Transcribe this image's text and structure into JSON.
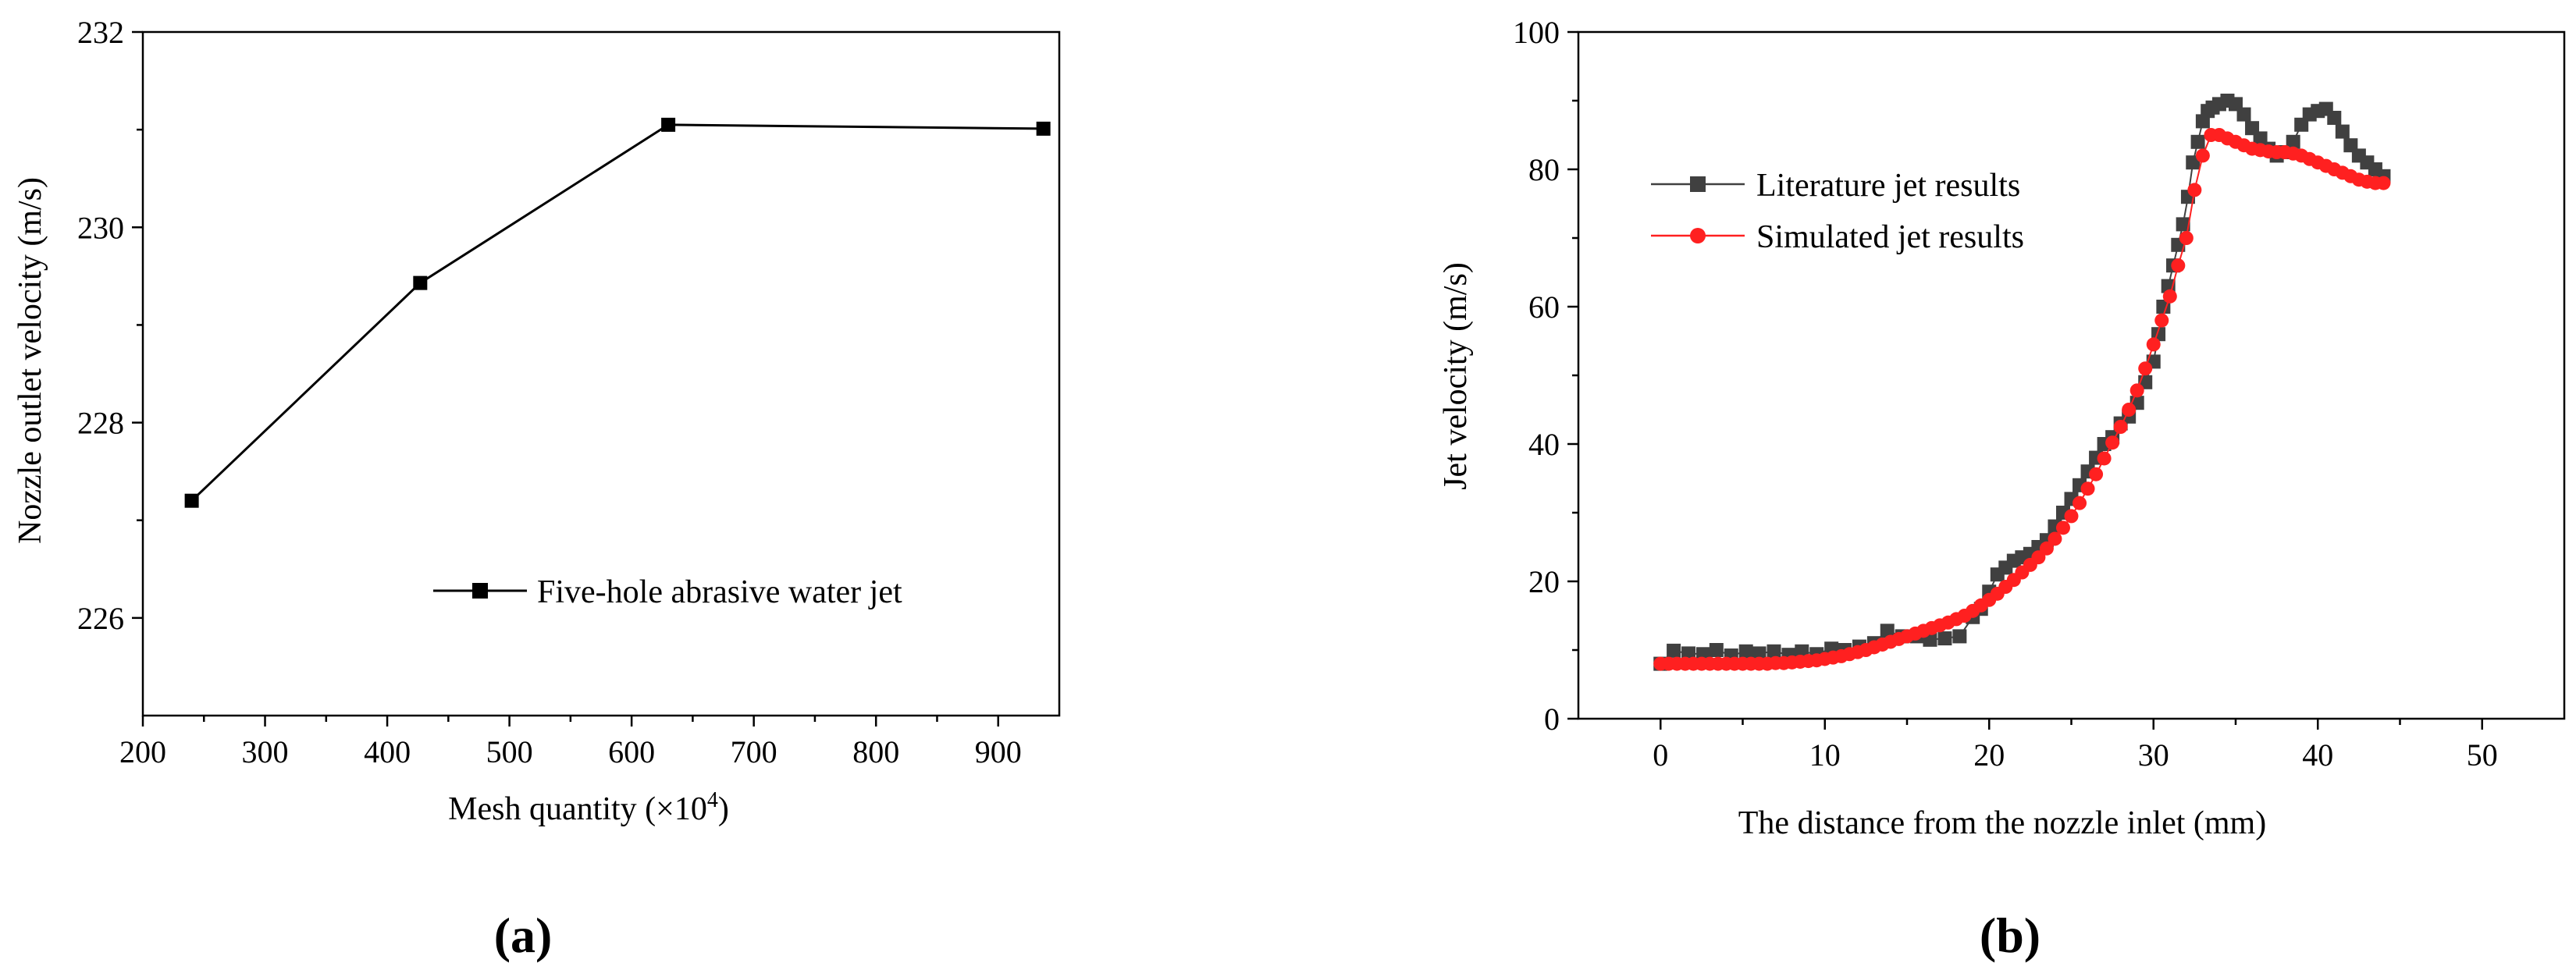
{
  "chart_data": [
    {
      "type": "line",
      "panel_label": "(a)",
      "xlabel": "Mesh quantity (×10⁴)",
      "ylabel": "Nozzle outlet velocity (m/s)",
      "xlim": [
        200,
        950
      ],
      "ylim": [
        225,
        232
      ],
      "xticks": [
        200,
        300,
        400,
        500,
        600,
        700,
        800,
        900
      ],
      "yticks": [
        226,
        228,
        230,
        232
      ],
      "legend_position": "lower-right",
      "series": [
        {
          "name": "Five-hole abrasive water jet",
          "color": "#000000",
          "marker": "square",
          "x": [
            240,
            427,
            630,
            937
          ],
          "y": [
            227.2,
            229.43,
            231.05,
            231.01
          ]
        }
      ]
    },
    {
      "type": "line",
      "panel_label": "(b)",
      "xlabel": "The distance from the nozzle inlet (mm)",
      "ylabel": "Jet velocity (m/s)",
      "xlim": [
        -5,
        55
      ],
      "ylim": [
        0,
        100
      ],
      "xticks": [
        0,
        10,
        20,
        30,
        40,
        50
      ],
      "yticks": [
        0,
        20,
        40,
        60,
        80,
        100
      ],
      "legend_position": "top-left",
      "series": [
        {
          "name": "Literature jet results",
          "color": "#404040",
          "marker": "square",
          "x": [
            0,
            0.8,
            1.7,
            2.6,
            3.4,
            4.3,
            5.2,
            6.0,
            6.9,
            7.8,
            8.6,
            9.5,
            10.4,
            11.2,
            12.1,
            13.0,
            13.8,
            14.7,
            15.6,
            16.4,
            17.3,
            18.2,
            19.0,
            19.5,
            20.0,
            20.5,
            21.0,
            21.5,
            22.0,
            22.5,
            23.0,
            23.5,
            24.0,
            24.5,
            25.0,
            25.5,
            26.0,
            26.5,
            27.0,
            27.5,
            28.0,
            28.5,
            29.0,
            29.5,
            30.0,
            30.3,
            30.6,
            30.9,
            31.2,
            31.5,
            31.8,
            32.1,
            32.4,
            32.7,
            33.0,
            33.3,
            33.6,
            34.0,
            34.5,
            35.0,
            35.5,
            36.0,
            36.5,
            37.0,
            37.5,
            38.0,
            38.5,
            39.0,
            39.5,
            40.0,
            40.5,
            41.0,
            41.5,
            42.0,
            42.5,
            43.0,
            43.5,
            44.0
          ],
          "y": [
            8,
            9.9,
            9.5,
            9.4,
            10.0,
            9.2,
            9.8,
            9.5,
            9.8,
            9.3,
            9.8,
            9.4,
            10.2,
            10.0,
            10.5,
            11.0,
            12.8,
            12.0,
            12.0,
            11.5,
            11.7,
            12.0,
            14.8,
            16.0,
            18.5,
            21.0,
            22.0,
            23.0,
            23.5,
            24.0,
            25.0,
            26.0,
            28.0,
            30.0,
            32.0,
            34.0,
            36.0,
            38.0,
            40.0,
            41.0,
            43.0,
            44.0,
            46.0,
            49.0,
            52.0,
            56.0,
            60.0,
            63.0,
            66.0,
            69.0,
            72.0,
            76.0,
            81.0,
            84.0,
            87.0,
            88.5,
            89.0,
            89.5,
            90.0,
            89.5,
            88.0,
            86.0,
            84.5,
            83.0,
            82.0,
            82.5,
            84.0,
            86.5,
            88.0,
            88.5,
            88.8,
            87.5,
            85.5,
            83.5,
            82.0,
            81.0,
            80.0,
            79.0
          ]
        },
        {
          "name": "Simulated jet results",
          "color": "#ff2020",
          "marker": "circle",
          "x": [
            0,
            0.5,
            1.0,
            1.5,
            2.0,
            2.5,
            3.0,
            3.5,
            4.0,
            4.5,
            5.0,
            5.5,
            6.0,
            6.5,
            7.0,
            7.5,
            8.0,
            8.5,
            9.0,
            9.5,
            10.0,
            10.5,
            11.0,
            11.5,
            12.0,
            12.5,
            13.0,
            13.5,
            14.0,
            14.5,
            15.0,
            15.5,
            16.0,
            16.5,
            17.0,
            17.5,
            18.0,
            18.5,
            19.0,
            19.5,
            20.0,
            20.5,
            21.0,
            21.5,
            22.0,
            22.5,
            23.0,
            23.5,
            24.0,
            24.5,
            25.0,
            25.5,
            26.0,
            26.5,
            27.0,
            27.5,
            28.0,
            28.5,
            29.0,
            29.5,
            30.0,
            30.5,
            31.0,
            31.5,
            32.0,
            32.5,
            33.0,
            33.5,
            34.0,
            34.5,
            35.0,
            35.5,
            36.0,
            36.5,
            37.0,
            37.5,
            38.0,
            38.5,
            39.0,
            39.5,
            40.0,
            40.5,
            41.0,
            41.5,
            42.0,
            42.5,
            43.0,
            43.5,
            44.0
          ],
          "y": [
            8.0,
            8.0,
            8.0,
            8.0,
            8.0,
            8.0,
            8.0,
            8.0,
            8.0,
            8.0,
            8.0,
            8.0,
            8.0,
            8.0,
            8.1,
            8.1,
            8.2,
            8.3,
            8.4,
            8.5,
            8.7,
            8.9,
            9.1,
            9.4,
            9.7,
            10.0,
            10.4,
            10.8,
            11.2,
            11.6,
            12.0,
            12.4,
            12.8,
            13.2,
            13.6,
            14.0,
            14.5,
            15.0,
            15.7,
            16.5,
            17.3,
            18.2,
            19.2,
            20.2,
            21.3,
            22.4,
            23.5,
            24.8,
            26.2,
            27.8,
            29.5,
            31.4,
            33.5,
            35.6,
            37.9,
            40.2,
            42.5,
            45.0,
            47.8,
            51.0,
            54.5,
            58.0,
            61.5,
            66.0,
            70.0,
            77.0,
            82.0,
            85.0,
            85.0,
            84.5,
            84.0,
            83.5,
            83.0,
            82.8,
            82.6,
            82.5,
            82.5,
            82.3,
            82.0,
            81.5,
            81.0,
            80.5,
            80.0,
            79.5,
            79.0,
            78.5,
            78.2,
            78.0,
            78.0
          ]
        }
      ]
    }
  ]
}
